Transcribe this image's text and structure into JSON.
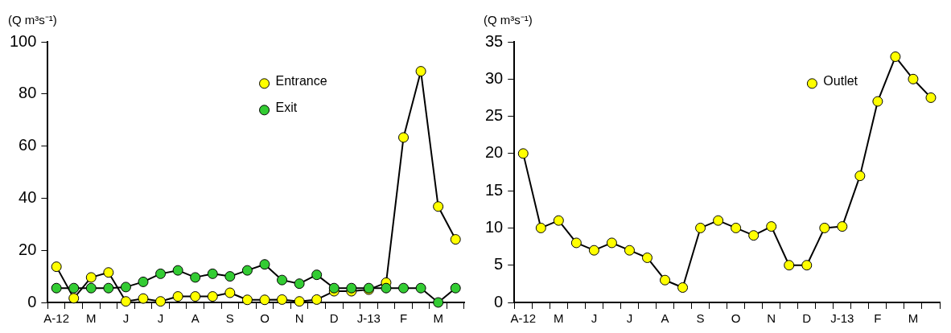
{
  "chart_data": [
    {
      "type": "line",
      "ylabel": "(Q m³s⁻¹)",
      "categories": [
        "A-12",
        null,
        "M",
        null,
        "J",
        null,
        "J",
        null,
        "A",
        null,
        "S",
        null,
        "O",
        null,
        "N",
        null,
        "D",
        null,
        "J-13",
        null,
        "F",
        null,
        "M",
        null
      ],
      "ylim": [
        0,
        100
      ],
      "yticks": [
        0,
        20,
        40,
        60,
        80,
        100
      ],
      "grid": false,
      "legend": "top",
      "marker": "circle",
      "line_style": "solid",
      "series": [
        {
          "name": "Entrance",
          "color": "#ffff00",
          "values": [
            13.7,
            1.6,
            9.6,
            11.5,
            0.4,
            1.5,
            0.4,
            2.3,
            2.3,
            2.3,
            3.7,
            1,
            1,
            1.1,
            0.4,
            1.1,
            4.3,
            4.3,
            4.9,
            7.6,
            63.3,
            88.7,
            36.8,
            24.2
          ]
        },
        {
          "name": "Exit",
          "color": "#33cc33",
          "values": [
            5.5,
            5.5,
            5.5,
            5.5,
            5.9,
            7.9,
            11,
            12.3,
            9.6,
            11,
            10,
            12.3,
            14.6,
            8.6,
            7.2,
            10.6,
            5.5,
            5.5,
            5.5,
            5.5,
            5.5,
            5.5,
            0,
            5.5
          ]
        }
      ]
    },
    {
      "type": "line",
      "ylabel": "(Q m³s⁻¹)",
      "categories": [
        "A-12",
        null,
        "M",
        null,
        "J",
        null,
        "J",
        null,
        "A",
        null,
        "S",
        null,
        "O",
        null,
        "N",
        null,
        "D",
        null,
        "J-13",
        null,
        "F",
        null,
        "M",
        null
      ],
      "ylim": [
        0,
        35
      ],
      "yticks": [
        0,
        5,
        10,
        15,
        20,
        25,
        30,
        35
      ],
      "grid": false,
      "legend": "top right",
      "marker": "circle",
      "line_style": "solid",
      "series": [
        {
          "name": "Outlet",
          "color": "#ffff00",
          "values": [
            20,
            10,
            11,
            8,
            7,
            8,
            7,
            6,
            3,
            2,
            10,
            11,
            10,
            9,
            10.2,
            5,
            5,
            10,
            10.2,
            17,
            27,
            33,
            30,
            27.5
          ]
        }
      ]
    }
  ]
}
